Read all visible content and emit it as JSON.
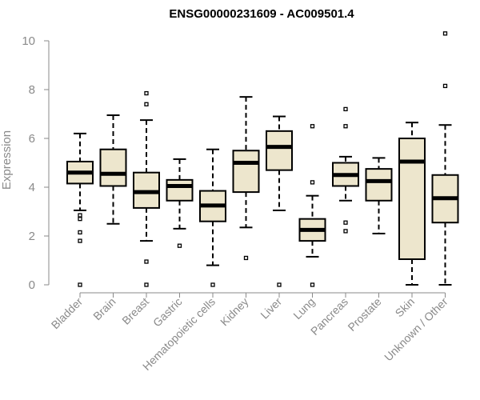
{
  "chart_data": {
    "type": "box",
    "title": "ENSG00000231609 - AC009501.4",
    "xlabel": "",
    "ylabel": "Expression",
    "ylim": [
      0,
      10.3
    ],
    "yticks": [
      0,
      2,
      4,
      6,
      8,
      10
    ],
    "box_fill": "#ede6cd",
    "axis_color": "#8a8a8a",
    "categories": [
      "Bladder",
      "Brain",
      "Breast",
      "Gastric",
      "Hematopoietic cells",
      "Kidney",
      "Liver",
      "Lung",
      "Pancreas",
      "Prostate",
      "Skin",
      "Unknown / Other"
    ],
    "boxes": [
      {
        "whisker_low": 3.05,
        "q1": 4.15,
        "median": 4.6,
        "q3": 5.05,
        "whisker_high": 6.2,
        "outliers": [
          2.85,
          2.7,
          2.15,
          1.8,
          0.0
        ]
      },
      {
        "whisker_low": 2.5,
        "q1": 4.05,
        "median": 4.55,
        "q3": 5.55,
        "whisker_high": 6.95,
        "outliers": []
      },
      {
        "whisker_low": 1.8,
        "q1": 3.15,
        "median": 3.8,
        "q3": 4.6,
        "whisker_high": 6.75,
        "outliers": [
          7.85,
          7.4,
          0.95,
          0.0
        ]
      },
      {
        "whisker_low": 2.3,
        "q1": 3.45,
        "median": 4.05,
        "q3": 4.3,
        "whisker_high": 5.15,
        "outliers": [
          1.6
        ]
      },
      {
        "whisker_low": 0.8,
        "q1": 2.6,
        "median": 3.25,
        "q3": 3.85,
        "whisker_high": 5.55,
        "outliers": [
          0.0
        ]
      },
      {
        "whisker_low": 2.35,
        "q1": 3.8,
        "median": 5.0,
        "q3": 5.5,
        "whisker_high": 7.7,
        "outliers": [
          1.1
        ]
      },
      {
        "whisker_low": 3.05,
        "q1": 4.7,
        "median": 5.65,
        "q3": 6.3,
        "whisker_high": 6.9,
        "outliers": [
          0.0
        ]
      },
      {
        "whisker_low": 1.15,
        "q1": 1.8,
        "median": 2.25,
        "q3": 2.7,
        "whisker_high": 3.65,
        "outliers": [
          6.5,
          4.2,
          0.0
        ]
      },
      {
        "whisker_low": 3.45,
        "q1": 4.05,
        "median": 4.5,
        "q3": 5.0,
        "whisker_high": 5.25,
        "outliers": [
          7.2,
          6.5,
          2.55,
          2.2
        ]
      },
      {
        "whisker_low": 2.1,
        "q1": 3.45,
        "median": 4.25,
        "q3": 4.75,
        "whisker_high": 5.2,
        "outliers": []
      },
      {
        "whisker_low": 0.0,
        "q1": 1.05,
        "median": 5.05,
        "q3": 6.0,
        "whisker_high": 6.65,
        "outliers": []
      },
      {
        "whisker_low": 0.0,
        "q1": 2.55,
        "median": 3.55,
        "q3": 4.5,
        "whisker_high": 6.55,
        "outliers": [
          10.3,
          8.15
        ]
      }
    ]
  }
}
